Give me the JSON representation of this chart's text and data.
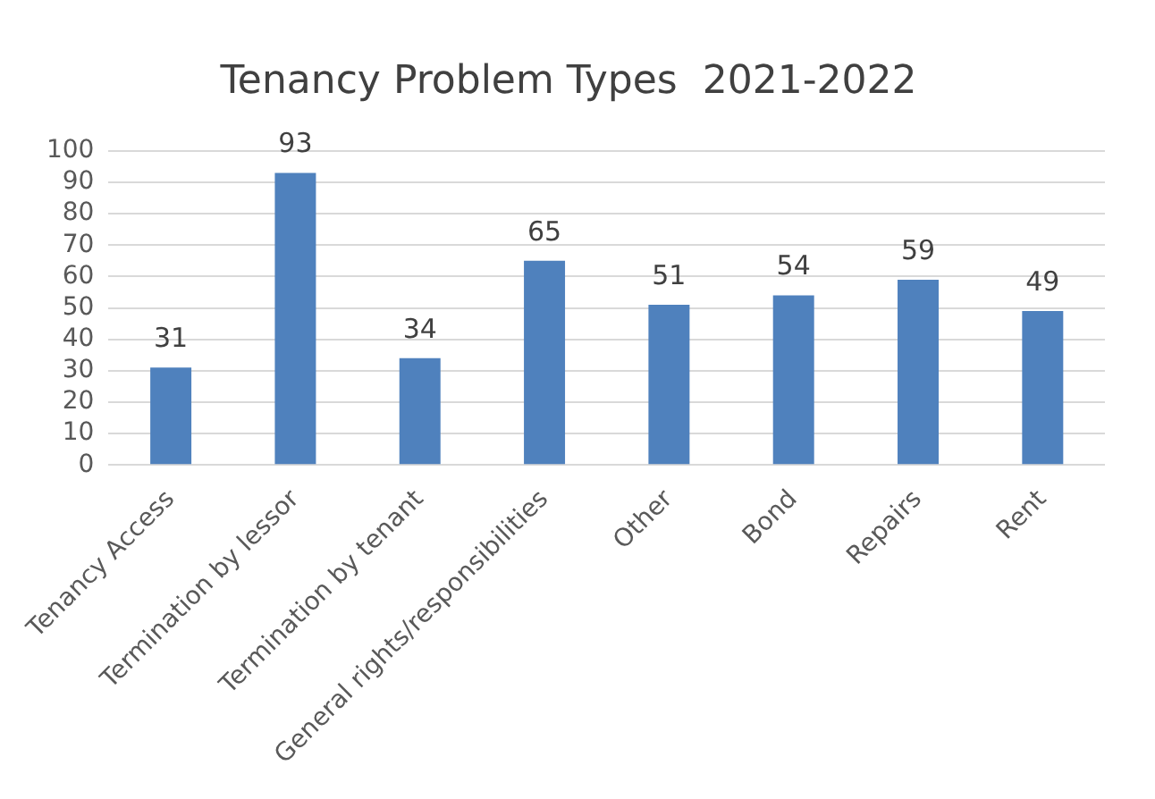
{
  "chart_data": {
    "type": "bar",
    "title": "Tenancy Problem Types  2021-2022",
    "categories": [
      "Tenancy Access",
      "Termination by lessor",
      "Termination by tenant",
      "General rights/responsibilities",
      "Other",
      "Bond",
      "Repairs",
      "Rent"
    ],
    "values": [
      31,
      93,
      34,
      65,
      51,
      54,
      59,
      49
    ],
    "color": "#4f81bd",
    "ylim": [
      0,
      100
    ],
    "yticks": [
      0,
      10,
      20,
      30,
      40,
      50,
      60,
      70,
      80,
      90,
      100
    ],
    "grid": "y",
    "data_labels": true,
    "legend": false
  }
}
